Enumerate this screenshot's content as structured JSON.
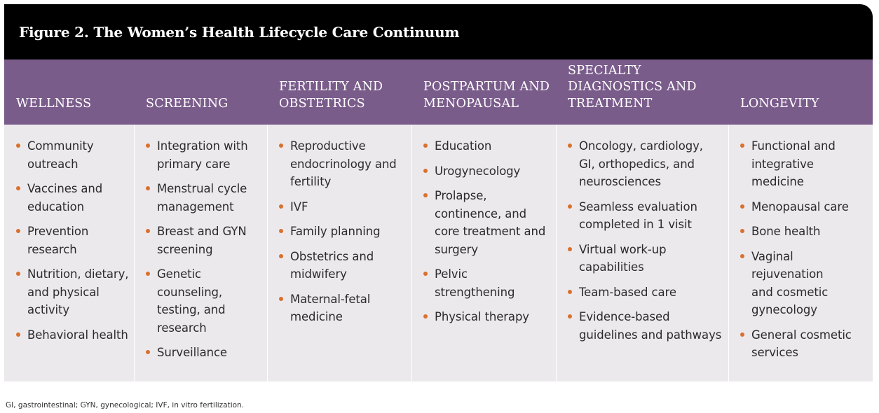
{
  "title": "Figure 2. The Women’s Health Lifecycle Care Continuum",
  "colors": {
    "title_bg": "#000000",
    "header_bg": "#7a5c8b",
    "body_bg": "#ece9ed",
    "bullet": "#d9702c"
  },
  "columns": [
    {
      "heading": "WELLNESS",
      "items": [
        "Community\noutreach",
        "Vaccines and\neducation",
        "Prevention\nresearch",
        "Nutrition, dietary,\nand physical\nactivity",
        "Behavioral health"
      ]
    },
    {
      "heading": "SCREENING",
      "items": [
        "Integration with\nprimary care",
        "Menstrual cycle\nmanagement",
        "Breast and GYN\nscreening",
        "Genetic\ncounseling,\ntesting, and\nresearch",
        "Surveillance"
      ]
    },
    {
      "heading": "FERTILITY AND\nOBSTETRICS",
      "items": [
        "Reproductive\nendocrinology and\nfertility",
        "IVF",
        "Family planning",
        "Obstetrics and\nmidwifery",
        "Maternal-fetal\nmedicine"
      ]
    },
    {
      "heading": "POSTPARTUM AND\nMENOPAUSAL",
      "items": [
        "Education",
        "Urogynecology",
        "Prolapse,\ncontinence, and\ncore treatment and\nsurgery",
        "Pelvic\nstrengthening",
        "Physical therapy"
      ]
    },
    {
      "heading": "SPECIALTY\nDIAGNOSTICS AND\nTREATMENT",
      "items": [
        "Oncology, cardiology,\nGI, orthopedics, and\nneurosciences",
        "Seamless evaluation\ncompleted in 1 visit",
        "Virtual work-up\ncapabilities",
        "Team-based care",
        "Evidence-based\nguidelines and pathways"
      ]
    },
    {
      "heading": "LONGEVITY",
      "items": [
        "Functional and\nintegrative\nmedicine",
        "Menopausal care",
        "Bone health",
        "Vaginal\nrejuvenation\nand cosmetic\ngynecology",
        "General cosmetic\nservices"
      ]
    }
  ],
  "footnote": "GI, gastrointestinal; GYN, gynecological; IVF, in vitro fertilization."
}
